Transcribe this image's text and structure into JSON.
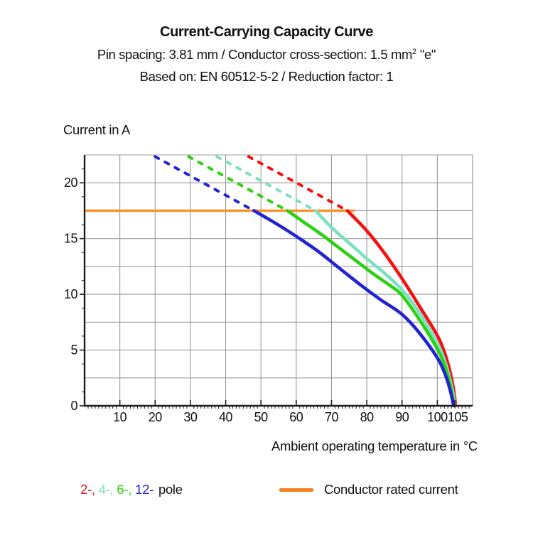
{
  "header": {
    "title": "Current-Carrying Capacity Curve",
    "subtitle_line1": {
      "before_sup": "Pin spacing: 3.81 mm / Conductor cross-section: 1.5 mm",
      "sup": "2",
      "after_sup": " \"e\""
    },
    "subtitle_line2": "Based on: EN 60512-5-2 / Reduction factor: 1"
  },
  "axes": {
    "y_label": "Current in A",
    "x_label": "Ambient operating temperature in °C"
  },
  "legend": {
    "pole_items": [
      {
        "label": "2-,",
        "color": "#f21212"
      },
      {
        "label": "4-,",
        "color": "#7ce0c4"
      },
      {
        "label": "6-,",
        "color": "#2fd014"
      },
      {
        "label": "12-",
        "color": "#2323d2"
      }
    ],
    "pole_suffix": "pole",
    "rated_label": "Conductor rated current",
    "rated_color": "#f5821f"
  },
  "chart_data": {
    "type": "line",
    "title": "Current-Carrying Capacity Curve",
    "xlabel": "Ambient operating temperature in °C",
    "ylabel": "Current in A",
    "xlim": [
      0,
      110
    ],
    "ylim": [
      0,
      22.5
    ],
    "x_ticks": [
      10,
      20,
      30,
      40,
      50,
      60,
      70,
      80,
      90,
      100,
      105
    ],
    "y_ticks": [
      0,
      5,
      10,
      15,
      20
    ],
    "grid": {
      "x_step": 10,
      "y_step": 2.5,
      "color": "#9a9a9a"
    },
    "axis_color": "#1c1c1c",
    "rated_current": {
      "label": "Conductor rated current",
      "value": 17.5,
      "x_start": 0,
      "x_end": 76.5,
      "color": "#fb9227"
    },
    "series": [
      {
        "name": "2-pole",
        "color": "#f21212",
        "dashed": [
          [
            46.5,
            22.35
          ],
          [
            74.5,
            17.5
          ]
        ],
        "solid": [
          [
            74.5,
            17.5
          ],
          [
            80,
            15.7
          ],
          [
            85,
            13.7
          ],
          [
            90,
            11.4
          ],
          [
            95,
            8.9
          ],
          [
            100,
            6.3
          ],
          [
            102,
            4.8
          ],
          [
            103.5,
            3.2
          ],
          [
            104.6,
            1.5
          ],
          [
            105.2,
            0
          ]
        ]
      },
      {
        "name": "4-pole",
        "color": "#7ce0c4",
        "dashed": [
          [
            37.5,
            22.35
          ],
          [
            65.5,
            17.5
          ]
        ],
        "solid": [
          [
            65.5,
            17.5
          ],
          [
            70,
            16.0
          ],
          [
            75,
            14.6
          ],
          [
            80,
            13.2
          ],
          [
            85,
            11.9
          ],
          [
            90,
            10.4
          ],
          [
            95,
            8.3
          ],
          [
            100,
            5.6
          ],
          [
            102,
            4.1
          ],
          [
            103.5,
            2.5
          ],
          [
            104.5,
            1.1
          ],
          [
            105.0,
            0
          ]
        ]
      },
      {
        "name": "6-pole",
        "color": "#2fd014",
        "dashed": [
          [
            29.5,
            22.35
          ],
          [
            57.5,
            17.5
          ]
        ],
        "solid": [
          [
            57.5,
            17.5
          ],
          [
            62,
            16.5
          ],
          [
            67,
            15.4
          ],
          [
            72,
            14.2
          ],
          [
            77,
            13.0
          ],
          [
            82,
            11.8
          ],
          [
            87,
            10.7
          ],
          [
            90,
            9.9
          ],
          [
            95,
            7.7
          ],
          [
            100,
            5.1
          ],
          [
            102,
            3.7
          ],
          [
            103.4,
            2.2
          ],
          [
            104.3,
            0.9
          ],
          [
            104.8,
            0
          ]
        ]
      },
      {
        "name": "12-pole",
        "color": "#2323d2",
        "dashed": [
          [
            20,
            22.35
          ],
          [
            48,
            17.5
          ]
        ],
        "solid": [
          [
            48,
            17.5
          ],
          [
            54,
            16.4
          ],
          [
            60,
            15.2
          ],
          [
            66,
            13.9
          ],
          [
            72,
            12.4
          ],
          [
            78,
            10.9
          ],
          [
            84,
            9.5
          ],
          [
            90,
            8.2
          ],
          [
            95,
            6.5
          ],
          [
            100,
            4.3
          ],
          [
            102,
            3.0
          ],
          [
            103.3,
            1.8
          ],
          [
            104.1,
            0.8
          ],
          [
            104.6,
            0
          ]
        ]
      }
    ]
  }
}
